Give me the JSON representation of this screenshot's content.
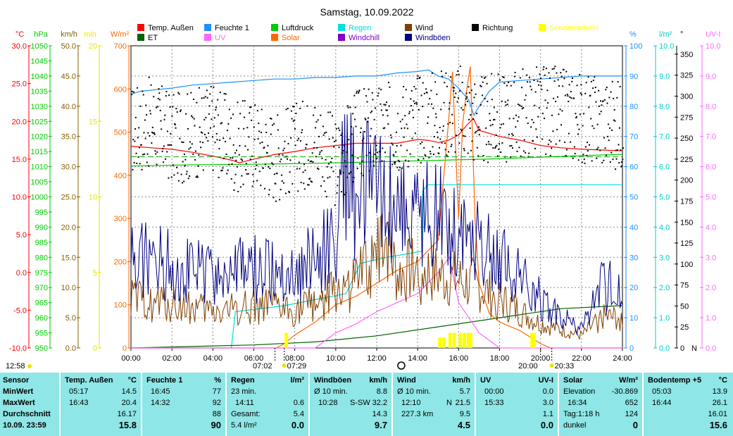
{
  "chart_data": {
    "type": "line",
    "title": "Samstag, 10.09.2022",
    "legend": [
      {
        "label": "Temp. Außen",
        "color": "#ff0000"
      },
      {
        "label": "Feuchte 1",
        "color": "#1e90ff"
      },
      {
        "label": "Luftdruck",
        "color": "#00cc00"
      },
      {
        "label": "Regen",
        "color": "#00dddd"
      },
      {
        "label": "Wind",
        "color": "#804000"
      },
      {
        "label": "Richtung",
        "color": "#000000"
      },
      {
        "label": "Sonnenschein",
        "color": "#ffff00"
      },
      {
        "label": "ET",
        "color": "#006400"
      },
      {
        "label": "UV",
        "color": "#ff66ff"
      },
      {
        "label": "Solar",
        "color": "#ff6600"
      },
      {
        "label": "Windchill",
        "color": "#8000c0"
      },
      {
        "label": "Windböen",
        "color": "#000080"
      }
    ],
    "axes_left": [
      {
        "unit": "°C",
        "color": "#ff0000",
        "min": -10,
        "max": 30,
        "ticks": [
          "30.0",
          "25.0",
          "20.0",
          "15.0",
          "10.0",
          "5.0",
          "0.0",
          "-5.0",
          "-10.0"
        ]
      },
      {
        "unit": "hPa",
        "color": "#00cc00",
        "min": 950,
        "max": 1050,
        "ticks": [
          "1050",
          "1045",
          "1040",
          "1035",
          "1030",
          "1025",
          "1020",
          "1015",
          "1010",
          "1005",
          "1000",
          "995",
          "990",
          "985",
          "980",
          "975",
          "970",
          "965",
          "960",
          "955",
          "950"
        ]
      },
      {
        "unit": "km/h",
        "color": "#806000",
        "min": 0,
        "max": 50,
        "ticks": [
          "50.0",
          "45.0",
          "40.0",
          "35.0",
          "30.0",
          "25.0",
          "20.0",
          "15.0",
          "10.0",
          "5.0",
          "0.0"
        ]
      },
      {
        "unit": "min",
        "color": "#e6e600",
        "min": 0,
        "max": 20,
        "ticks": [
          "20",
          "15",
          "10",
          "5",
          "0"
        ]
      },
      {
        "unit": "W/m²",
        "color": "#ff6600",
        "min": 0,
        "max": 700,
        "ticks": [
          "700",
          "600",
          "500",
          "400",
          "300",
          "200",
          "100",
          "0"
        ]
      }
    ],
    "axes_right": [
      {
        "unit": "%",
        "color": "#1e90ff",
        "min": 0,
        "max": 100,
        "ticks": [
          "100",
          "90",
          "80",
          "70",
          "60",
          "50",
          "40",
          "30",
          "20",
          "10",
          "0"
        ]
      },
      {
        "unit": "l/m²",
        "color": "#00cccc",
        "min": 0,
        "max": 10,
        "ticks": [
          "10.0",
          "9.0",
          "8.0",
          "7.0",
          "6.0",
          "5.0",
          "4.0",
          "3.0",
          "2.0",
          "1.0",
          "0.0"
        ]
      },
      {
        "unit": "°",
        "color": "#000000",
        "min": 0,
        "max": 360,
        "ticks": [
          "350",
          "325",
          "300",
          "275",
          "250",
          "225",
          "200",
          "175",
          "150",
          "125",
          "100",
          "75",
          "50",
          "25",
          "0"
        ],
        "bottom_label": "N"
      },
      {
        "unit": "UV-I",
        "color": "#ff66ff",
        "min": 0,
        "max": 10,
        "ticks": [
          "10.0",
          "9.0",
          "8.0",
          "7.0",
          "6.0",
          "5.0",
          "4.0",
          "3.0",
          "2.0",
          "1.0",
          "0.0"
        ]
      }
    ],
    "x_ticks": [
      "00:00",
      "02:00",
      "04:00",
      "06:00",
      "08:00",
      "10:00",
      "12:00",
      "14:00",
      "16:00",
      "18:00",
      "20:00",
      "22:00",
      "24:00"
    ],
    "time_markers": {
      "dawn": "07:02",
      "sunrise": "07:29",
      "sunset": "20:00",
      "dusk": "20:33",
      "daylength": "12:58"
    },
    "series": [
      {
        "name": "Temp. Außen",
        "axis": "°C",
        "x_hours": [
          0,
          1,
          2,
          3,
          4,
          5,
          5.28,
          6,
          7,
          8,
          9,
          10,
          11,
          12,
          13,
          14,
          14.5,
          15,
          15.5,
          16,
          16.4,
          16.72,
          17,
          18,
          19,
          20,
          21,
          22,
          23,
          24
        ],
        "values": [
          16.7,
          16.5,
          16.3,
          15.9,
          15.4,
          14.8,
          14.5,
          15.0,
          15.6,
          16.0,
          16.5,
          16.8,
          17.1,
          17.1,
          17.1,
          17.6,
          17.5,
          17.2,
          17.5,
          18.2,
          19.5,
          20.4,
          18.8,
          18.0,
          17.5,
          16.8,
          16.5,
          16.3,
          16.2,
          16.1
        ]
      },
      {
        "name": "Feuchte 1",
        "axis": "%",
        "x_hours": [
          0,
          0.5,
          2,
          3,
          5,
          6,
          7,
          8,
          9,
          10,
          11,
          12,
          13,
          14,
          14.53,
          15,
          15.5,
          16,
          16.5,
          16.75,
          17,
          17.5,
          18,
          19,
          20,
          21,
          22,
          23,
          24
        ],
        "values": [
          84,
          85,
          86,
          87,
          88,
          88.5,
          89,
          89,
          89.5,
          89.5,
          90,
          90,
          91,
          91.5,
          92,
          90,
          89,
          86,
          82,
          77,
          80,
          85,
          88,
          88.5,
          89,
          89.5,
          90,
          90,
          90
        ]
      },
      {
        "name": "Luftdruck",
        "axis": "hPa",
        "x_hours": [
          0,
          3,
          6,
          9,
          12,
          15,
          18,
          21,
          24
        ],
        "values": [
          1010.2,
          1010.6,
          1010.8,
          1011.1,
          1011.6,
          1012.1,
          1012.6,
          1013.4,
          1014.1
        ]
      },
      {
        "name": "Regen",
        "axis": "l/m²",
        "x_hours": [
          0,
          4.9,
          5.1,
          7.5,
          10.5,
          11,
          11.2,
          12.5,
          14.2,
          14.25,
          14.5,
          15,
          24
        ],
        "values": [
          0,
          0,
          1.2,
          1.4,
          1.8,
          2.5,
          2.8,
          3.0,
          3.2,
          5.2,
          5.4,
          5.4,
          5.4
        ]
      },
      {
        "name": "ET",
        "axis": "l/m²",
        "x_hours": [
          0,
          3,
          6,
          9,
          12,
          15,
          18,
          21,
          24
        ],
        "values": [
          0,
          0.05,
          0.1,
          0.2,
          0.4,
          0.7,
          1.0,
          1.3,
          1.4
        ]
      },
      {
        "name": "Solar",
        "axis": "W/m²",
        "x_hours": [
          0,
          7.1,
          7.5,
          8,
          9,
          10,
          11,
          12,
          13,
          14,
          15,
          15.5,
          15.7,
          16,
          16.2,
          16.4,
          16.57,
          16.8,
          17,
          17.5,
          18,
          19,
          20,
          20.5,
          21,
          24
        ],
        "values": [
          0,
          0,
          10,
          30,
          60,
          100,
          120,
          150,
          180,
          200,
          250,
          520,
          640,
          300,
          520,
          600,
          652,
          300,
          150,
          80,
          60,
          40,
          10,
          0,
          0,
          0
        ]
      },
      {
        "name": "UV",
        "axis": "UV-I",
        "x_hours": [
          0,
          9,
          10,
          11,
          12,
          13,
          14,
          15,
          15.55,
          16,
          17,
          18,
          24
        ],
        "values": [
          0,
          0,
          0.5,
          0.8,
          1.2,
          1.5,
          1.8,
          2.5,
          3.0,
          1.5,
          0.5,
          0,
          0
        ]
      },
      {
        "name": "Wind",
        "axis": "km/h",
        "x_hours": [
          0,
          2,
          4,
          6,
          8,
          10,
          11,
          12,
          12.17,
          13,
          14,
          15,
          16,
          17,
          18,
          19,
          20,
          21,
          22,
          23,
          24
        ],
        "values": [
          8,
          7,
          6,
          7,
          6,
          9,
          11,
          14,
          21.5,
          12,
          13,
          12,
          11,
          10,
          8,
          6,
          4,
          3,
          2,
          5,
          5
        ]
      },
      {
        "name": "Windböen",
        "axis": "km/h",
        "x_hours": [
          0,
          2,
          4,
          6,
          8,
          10,
          10.47,
          11,
          12,
          13,
          14,
          15,
          16,
          17,
          18,
          19,
          20,
          21,
          22,
          23,
          24
        ],
        "values": [
          15,
          14,
          12,
          13,
          12,
          18,
          32.2,
          25,
          27,
          24,
          22,
          22,
          20,
          18,
          15,
          12,
          8,
          5,
          3,
          10,
          10
        ]
      },
      {
        "name": "Richtung",
        "axis": "°",
        "type": "scatter",
        "x_hours": [
          0,
          1,
          2,
          3,
          4,
          5,
          6,
          7,
          8,
          9,
          10,
          11,
          12,
          13,
          14,
          15,
          16,
          17,
          18,
          19,
          20,
          21,
          22,
          23,
          24
        ],
        "values": [
          260,
          270,
          250,
          255,
          265,
          240,
          245,
          230,
          240,
          250,
          220,
          255,
          260,
          265,
          275,
          280,
          285,
          270,
          275,
          280,
          285,
          280,
          275,
          270,
          265
        ]
      },
      {
        "name": "Sonnenschein",
        "axis": "min",
        "type": "bar",
        "x_hours": [
          7.5,
          15,
          15.2,
          15.5,
          15.7,
          16,
          16.2,
          16.4,
          16.5,
          19.5,
          19.6
        ],
        "values": [
          1,
          0.7,
          0.7,
          1,
          1,
          1,
          1,
          1,
          1,
          1,
          1
        ]
      }
    ]
  },
  "table": {
    "sensor": {
      "header": "Sensor",
      "minwert": "MinWert",
      "maxwert": "MaxWert",
      "durchschnitt": "Durchschnitt",
      "current": "10.09. 23:59"
    },
    "temp": {
      "name": "Temp. Außen",
      "unit": "°C",
      "min_time": "05:17",
      "min_val": "14.5",
      "max_time": "16:43",
      "max_val": "20.4",
      "avg": "16.17",
      "cur": "15.8"
    },
    "feuchte": {
      "name": "Feuchte 1",
      "unit": "%",
      "min_time": "16:45",
      "min_val": "77",
      "max_time": "14:32",
      "max_val": "92",
      "avg": "88",
      "cur": "90"
    },
    "regen": {
      "name": "Regen",
      "unit": "l/m²",
      "r1_label": "23 min.",
      "r2_label": "14:11",
      "r2_val": "0.6",
      "r3_label": "Gesamt:",
      "r3_val": "5.4",
      "cur_label": "5.4 l/m²",
      "cur": "0.0"
    },
    "boeen": {
      "name": "Windböen",
      "unit": "km/h",
      "r1_label": "Ø 10 min.",
      "r1_val": "8.8",
      "r2_label": "10:28",
      "r2_mid": "S-SW",
      "r2_val": "32.2",
      "r3_val": "14.3",
      "cur": "9.7"
    },
    "wind": {
      "name": "Wind",
      "unit": "km/h",
      "r1_label": "Ø 10 min.",
      "r1_val": "5.7",
      "r2_label": "12:10",
      "r2_mid": "N",
      "r2_val": "21.5",
      "r3_label": "227.3 km",
      "r3_val": "9.5",
      "cur": "4.5"
    },
    "uv": {
      "name": "UV",
      "unit": "UV-I",
      "min_time": "00:00",
      "min_val": "0.0",
      "max_time": "15:33",
      "max_val": "3.0",
      "avg": "1.1",
      "cur": "0.0"
    },
    "solar": {
      "name": "Solar",
      "unit": "W/m²",
      "r1_label": "Elevation",
      "r1_val": "-30.869",
      "r2_label": "16:34",
      "r2_val": "652",
      "r3_label": "Tag:1:18 h",
      "r3_val": "124",
      "cur_label": "dunkel",
      "cur": "0"
    },
    "boden": {
      "name": "Bodentemp +5",
      "unit": "°C",
      "min_time": "05:03",
      "min_val": "13.9",
      "max_time": "16:44",
      "max_val": "26.1",
      "avg": "16.01",
      "cur": "15.6"
    }
  }
}
